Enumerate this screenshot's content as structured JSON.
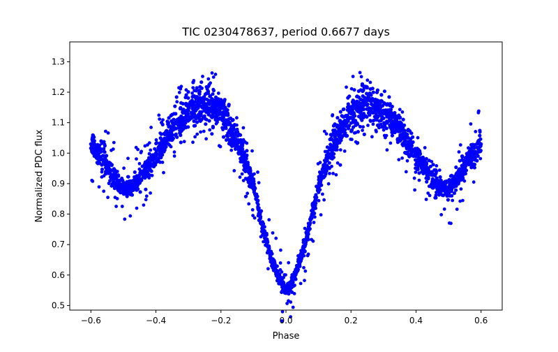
{
  "chart_data": {
    "type": "scatter",
    "title": "TIC 0230478637, period 0.6677 days",
    "xlabel": "Phase",
    "ylabel": "Normalized PDC flux",
    "xlim": [
      -0.665,
      0.665
    ],
    "ylim": [
      0.485,
      1.365
    ],
    "xticks": [
      -0.6,
      -0.4,
      -0.2,
      0.0,
      0.2,
      0.4,
      0.6
    ],
    "xtick_labels": [
      "−0.6",
      "−0.4",
      "−0.2",
      "0.0",
      "0.2",
      "0.4",
      "0.6"
    ],
    "yticks": [
      0.5,
      0.6,
      0.7,
      0.8,
      0.9,
      1.0,
      1.1,
      1.2,
      1.3
    ],
    "ytick_labels": [
      "0.5",
      "0.6",
      "0.7",
      "0.8",
      "0.9",
      "1.0",
      "1.1",
      "1.2",
      "1.3"
    ],
    "grid": false,
    "marker_color": "#0000ff",
    "series": [
      {
        "note_values": "phase-folded light curve; envelope digitized from plot",
        "x": [
          -0.6,
          -0.55,
          -0.52,
          -0.5,
          -0.47,
          -0.44,
          -0.4,
          -0.35,
          -0.3,
          -0.25,
          -0.22,
          -0.2,
          -0.17,
          -0.14,
          -0.12,
          -0.1,
          -0.08,
          -0.06,
          -0.04,
          -0.02,
          0.0,
          0.02,
          0.04,
          0.06,
          0.08,
          0.1,
          0.12,
          0.14,
          0.17,
          0.2,
          0.22,
          0.25,
          0.3,
          0.35,
          0.4,
          0.44,
          0.47,
          0.5,
          0.52,
          0.55,
          0.6
        ],
        "y": [
          1.03,
          0.96,
          0.9,
          0.88,
          0.89,
          0.93,
          0.99,
          1.08,
          1.14,
          1.16,
          1.15,
          1.13,
          1.08,
          1.02,
          0.96,
          0.89,
          0.8,
          0.71,
          0.64,
          0.58,
          0.55,
          0.58,
          0.64,
          0.71,
          0.8,
          0.89,
          0.96,
          1.02,
          1.08,
          1.13,
          1.15,
          1.16,
          1.14,
          1.08,
          0.99,
          0.93,
          0.89,
          0.88,
          0.9,
          0.96,
          1.03
        ]
      }
    ]
  }
}
